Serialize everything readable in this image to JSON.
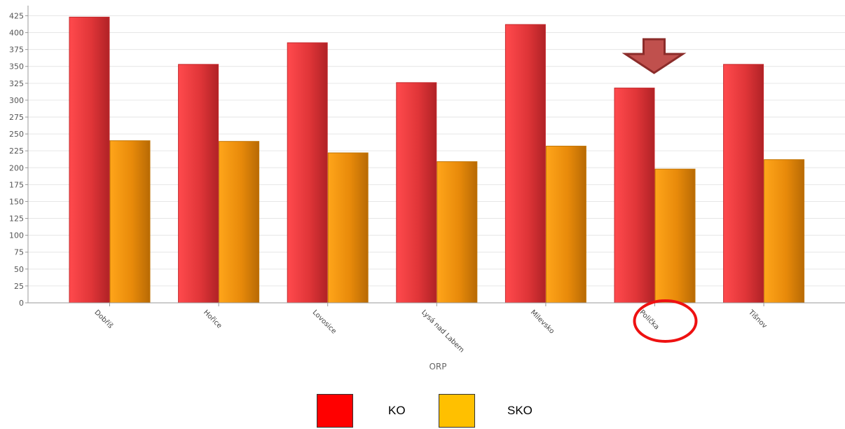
{
  "colors": {
    "ko_bar": "#e8363a",
    "sko_bar": "#f0940c",
    "ko_legend": "#ff0000",
    "sko_legend": "#ffc000",
    "arrow": "#c0504d",
    "arrow_stroke": "#8b2c2a",
    "highlight_circle": "#ee1111",
    "gridline": "#e6e6e6",
    "axis": "#999999"
  },
  "chart_data": {
    "type": "bar",
    "title": "",
    "xlabel": "ORP",
    "ylabel": "",
    "ylim": [
      0,
      440
    ],
    "yticks": [
      0,
      25,
      50,
      75,
      100,
      125,
      150,
      175,
      200,
      225,
      250,
      275,
      300,
      325,
      350,
      375,
      400,
      425
    ],
    "grid": true,
    "legend": "bottom-center",
    "categories": [
      "Dobříš",
      "Hořice",
      "Lovosice",
      "Lysá nad Labem",
      "Milevsko",
      "Polička",
      "Tišnov"
    ],
    "series": [
      {
        "name": "KO",
        "values": [
          423,
          353,
          385,
          326,
          412,
          318,
          353
        ]
      },
      {
        "name": "SKO",
        "values": [
          240,
          239,
          222,
          209,
          232,
          198,
          212
        ]
      }
    ],
    "highlight": {
      "category": "Polička",
      "marker": "down-arrow",
      "label_marker": "circle"
    }
  },
  "legend": {
    "items": [
      {
        "label": "KO",
        "color_key": "ko_legend"
      },
      {
        "label": "SKO",
        "color_key": "sko_legend"
      }
    ]
  }
}
